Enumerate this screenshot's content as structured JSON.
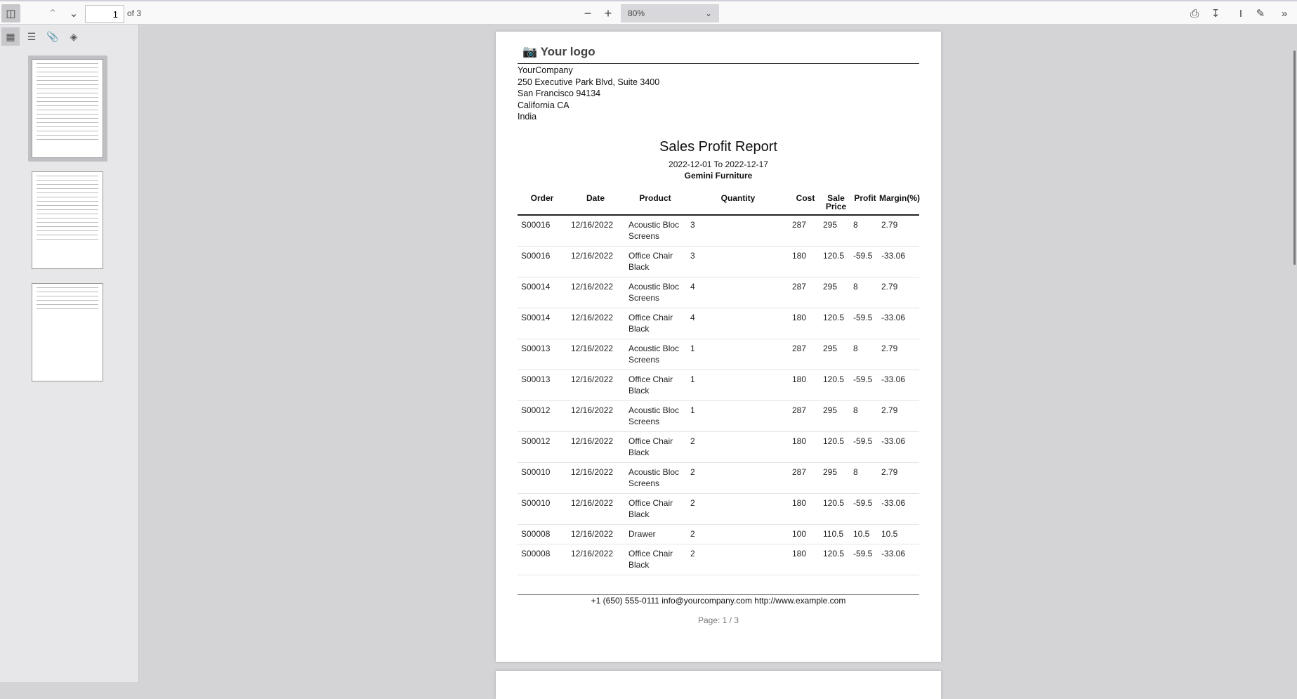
{
  "toolbar": {
    "page_number": "1",
    "page_count_label": "of 3",
    "zoom": "80%"
  },
  "sidebar": {
    "views": [
      "thumbnails",
      "outline",
      "attachments",
      "layers"
    ],
    "thumbnail_count": 3,
    "selected_page": 1
  },
  "document": {
    "logo_text": "Your logo",
    "company": [
      "YourCompany",
      "250 Executive Park Blvd, Suite 3400",
      "San Francisco 94134",
      "California CA",
      "India"
    ],
    "title": "Sales Profit Report",
    "date_range": "2022-12-01 To 2022-12-17",
    "customer": "Gemini Furniture",
    "columns": [
      "Order",
      "Date",
      "Product",
      "Quantity",
      "Cost",
      "Sale Price",
      "Profit",
      "Margin(%)"
    ],
    "rows": [
      [
        "S00016",
        "12/16/2022",
        "Acoustic Bloc Screens",
        "3",
        "287",
        "295",
        "8",
        "2.79"
      ],
      [
        "S00016",
        "12/16/2022",
        "Office Chair Black",
        "3",
        "180",
        "120.5",
        "-59.5",
        "-33.06"
      ],
      [
        "S00014",
        "12/16/2022",
        "Acoustic Bloc Screens",
        "4",
        "287",
        "295",
        "8",
        "2.79"
      ],
      [
        "S00014",
        "12/16/2022",
        "Office Chair Black",
        "4",
        "180",
        "120.5",
        "-59.5",
        "-33.06"
      ],
      [
        "S00013",
        "12/16/2022",
        "Acoustic Bloc Screens",
        "1",
        "287",
        "295",
        "8",
        "2.79"
      ],
      [
        "S00013",
        "12/16/2022",
        "Office Chair Black",
        "1",
        "180",
        "120.5",
        "-59.5",
        "-33.06"
      ],
      [
        "S00012",
        "12/16/2022",
        "Acoustic Bloc Screens",
        "1",
        "287",
        "295",
        "8",
        "2.79"
      ],
      [
        "S00012",
        "12/16/2022",
        "Office Chair Black",
        "2",
        "180",
        "120.5",
        "-59.5",
        "-33.06"
      ],
      [
        "S00010",
        "12/16/2022",
        "Acoustic Bloc Screens",
        "2",
        "287",
        "295",
        "8",
        "2.79"
      ],
      [
        "S00010",
        "12/16/2022",
        "Office Chair Black",
        "2",
        "180",
        "120.5",
        "-59.5",
        "-33.06"
      ],
      [
        "S00008",
        "12/16/2022",
        "Drawer",
        "2",
        "100",
        "110.5",
        "10.5",
        "10.5"
      ],
      [
        "S00008",
        "12/16/2022",
        "Office Chair Black",
        "2",
        "180",
        "120.5",
        "-59.5",
        "-33.06"
      ]
    ],
    "footer_contact": "+1 (650) 555-0111 info@yourcompany.com http://www.example.com",
    "footer_page": "Page: 1 / 3"
  }
}
